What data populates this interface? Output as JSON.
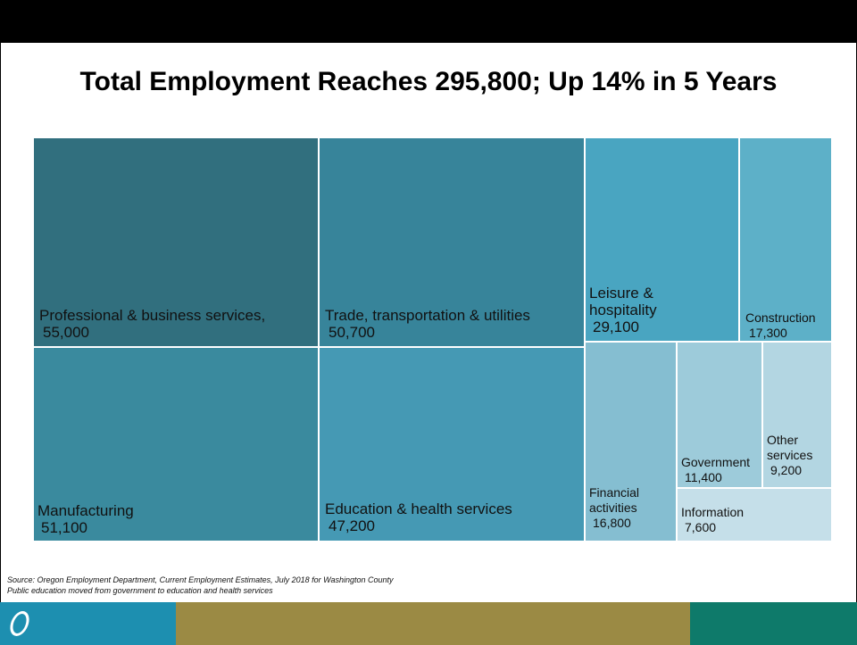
{
  "title": "Total Employment Reaches 295,800; Up 14% in 5 Years",
  "chart_data": {
    "type": "treemap",
    "title": "Total Employment Reaches 295,800; Up 14% in 5 Years",
    "unit": "jobs",
    "items": [
      {
        "name": "Professional & business services,",
        "value": 55000,
        "value_label": "55,000",
        "color": "#316f7e"
      },
      {
        "name": "Trade, transportation & utilities",
        "value": 50700,
        "value_label": "50,700",
        "color": "#37849a"
      },
      {
        "name": "Manufacturing",
        "value": 51100,
        "value_label": "51,100",
        "color": "#3a8a9e"
      },
      {
        "name": "Education & health services",
        "value": 47200,
        "value_label": "47,200",
        "color": "#4599b4"
      },
      {
        "name": "Leisure & hospitality",
        "value": 29100,
        "value_label": "29,100",
        "color": "#49a5c1"
      },
      {
        "name": "Construction",
        "value": 17300,
        "value_label": "17,300",
        "color": "#5db0c8"
      },
      {
        "name": "Financial activities",
        "value": 16800,
        "value_label": "16,800",
        "color": "#85bed1"
      },
      {
        "name": "Government",
        "value": 11400,
        "value_label": "11,400",
        "color": "#9dcbda"
      },
      {
        "name": "Other services",
        "value": 9200,
        "value_label": "9,200",
        "color": "#b3d6e2"
      },
      {
        "name": "Information",
        "value": 7600,
        "value_label": "7,600",
        "color": "#c5dfe9"
      }
    ]
  },
  "source_lines": [
    "Source: Oregon Employment Department, Current Employment Estimates, July 2018 for Washington County",
    "Public education moved from government to education and health services"
  ],
  "footer": {
    "colors": [
      "#1d8fb0",
      "#9b8a44",
      "#0e7a6a"
    ],
    "logo_icon": "oregon-o-logo-icon"
  }
}
